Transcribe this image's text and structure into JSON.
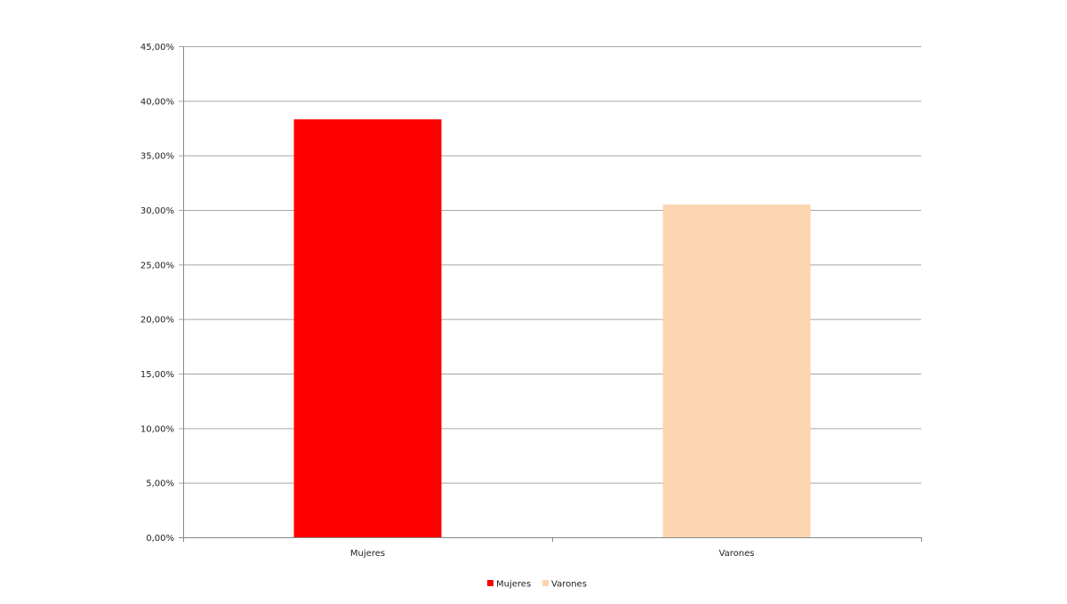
{
  "chart_data": {
    "type": "bar",
    "categories": [
      "Mujeres",
      "Varones"
    ],
    "series": [
      {
        "name": "Mujeres",
        "values": [
          38.3,
          null
        ],
        "color": "#ff0000"
      },
      {
        "name": "Varones",
        "values": [
          null,
          30.5
        ],
        "color": "#fad5b0"
      }
    ],
    "ylim": [
      0,
      45
    ],
    "yticks": [
      0,
      5,
      10,
      15,
      20,
      25,
      30,
      35,
      40,
      45
    ],
    "ytick_labels": [
      "0,00%",
      "5,00%",
      "10,00%",
      "15,00%",
      "20,00%",
      "25,00%",
      "30,00%",
      "35,00%",
      "40,00%",
      "45,00%"
    ],
    "grid": true,
    "legend": "bottom",
    "title": "",
    "xlabel": "",
    "ylabel": ""
  }
}
